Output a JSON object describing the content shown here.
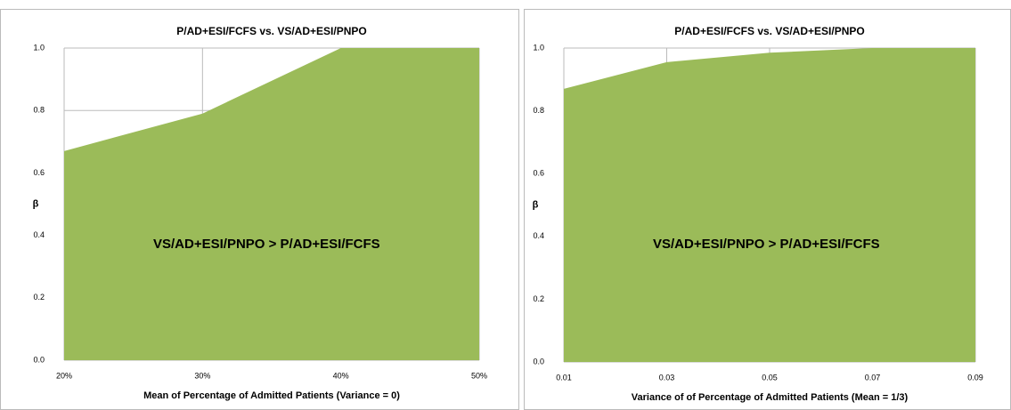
{
  "chart_data": [
    {
      "type": "area",
      "title": "P/AD+ESI/FCFS vs.  VS/AD+ESI/PNPO",
      "xlabel": "Mean of Percentage of Admitted  Patients (Variance = 0)",
      "ylabel": "β",
      "annotation": "VS/AD+ESI/PNPO > P/AD+ESI/FCFS",
      "color": "#9bbb59",
      "grid": true,
      "x": [
        20,
        30,
        40,
        50
      ],
      "values": [
        0.67,
        0.79,
        1.0,
        1.0
      ],
      "xlim": [
        20,
        50
      ],
      "xticks": [
        {
          "value": 20,
          "label": "20%"
        },
        {
          "value": 30,
          "label": "30%"
        },
        {
          "value": 40,
          "label": "40%"
        },
        {
          "value": 50,
          "label": "50%"
        }
      ],
      "ylim": [
        0,
        1
      ],
      "yticks": [
        {
          "value": 0,
          "label": "0.0"
        },
        0.2,
        0.4,
        0.6,
        0.8,
        {
          "value": 1,
          "label": "1.0"
        }
      ]
    },
    {
      "type": "area",
      "title": "P/AD+ESI/FCFS vs.  VS/AD+ESI/PNPO",
      "xlabel": "Variance of  of  Percentage of Admitted  Patients (Mean = 1/3)",
      "ylabel": "β",
      "annotation": "VS/AD+ESI/PNPO > P/AD+ESI/FCFS",
      "color": "#9bbb59",
      "grid": true,
      "x": [
        0.01,
        0.03,
        0.05,
        0.07,
        0.09
      ],
      "values": [
        0.87,
        0.955,
        0.985,
        1.0,
        1.0
      ],
      "xlim": [
        0.01,
        0.09
      ],
      "xticks": [
        0.01,
        0.03,
        0.05,
        0.07,
        0.09
      ],
      "ylim": [
        0,
        1
      ],
      "yticks": [
        {
          "value": 0,
          "label": "0.0"
        },
        0.2,
        0.4,
        0.6,
        0.8,
        {
          "value": 1,
          "label": "1.0"
        }
      ]
    }
  ]
}
